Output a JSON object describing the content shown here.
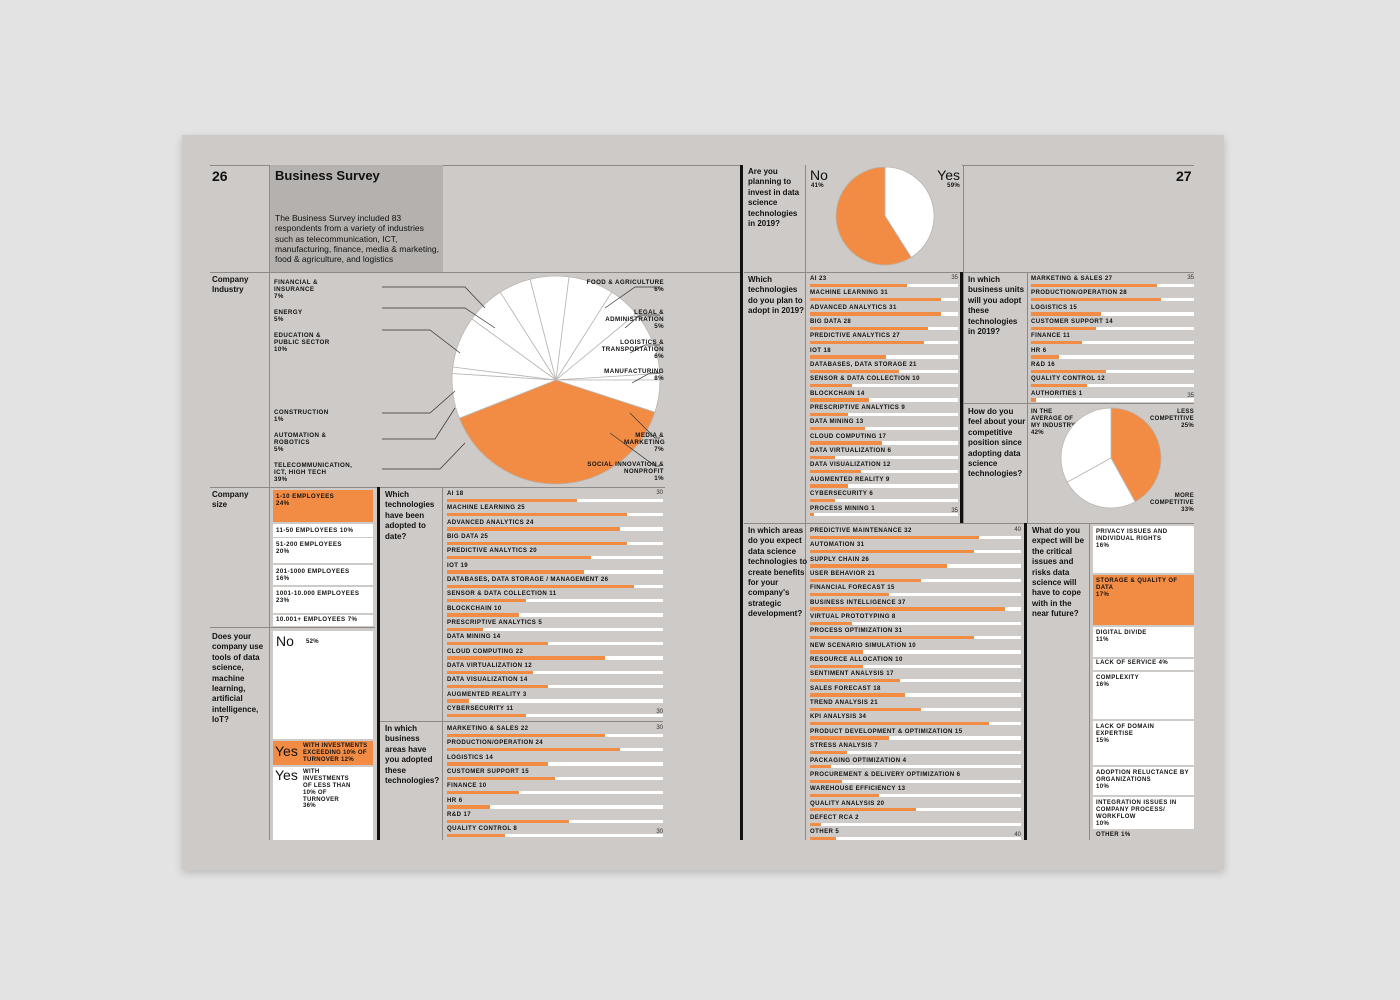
{
  "page_left": "26",
  "page_right": "27",
  "title": "Business Survey",
  "intro": "The Business Survey included 83 respondents from a variety of industries such as telecommunication, ICT, manufacturing, finance, media & marketing, food & agriculture, and logistics",
  "q_industry": "Company Industry",
  "q_size": "Company size",
  "q_tools": "Does your company use tools of data science, machine learning, artificial intelligence, IoT?",
  "q_adopted": "Which technologies have been adopted to date?",
  "q_areas": "In which business areas have you adopted these technologies?",
  "q_invest": "Are you planning to invest in data science technologies in 2019?",
  "q_plan": "Which technologies do you plan to adopt in 2019?",
  "q_units": "In which business units will you adopt these technologies in 2019?",
  "q_compete": "How do you feel about your competitive position since adopting data science technologies?",
  "q_benefits": "In which areas do you expect data science technologies to create benefits for your company's strategic development?",
  "q_issues": "What do you expect will be the critical issues and risks data science will have to cope with in the near future?",
  "industry_labels": {
    "food": "FOOD & AGRICULTURE",
    "food_v": "6%",
    "legal": "LEGAL & ADMINISTRATION",
    "legal_v": "5%",
    "logistics": "LOGISTICS & TRANSPORTATION",
    "logistics_v": "6%",
    "manufacturing": "MANUFACTURING",
    "manufacturing_v": "8%",
    "media": "MEDIA & MARKETING",
    "media_v": "7%",
    "social": "SOCIAL INNOVATION & NONPROFIT",
    "social_v": "1%",
    "financial": "FINANCIAL & INSURANCE",
    "financial_v": "7%",
    "energy": "ENERGY",
    "energy_v": "5%",
    "education": "EDUCATION & PUBLIC SECTOR",
    "education_v": "10%",
    "construction": "CONSTRUCTION",
    "construction_v": "1%",
    "automation": "AUTOMATION & ROBOTICS",
    "automation_v": "5%",
    "telecom": "TELECOMMUNICATION, ICT, HIGH TECH",
    "telecom_v": "39%"
  },
  "company_size": [
    {
      "label": "1-10 EMPLOYEES",
      "value": "24%"
    },
    {
      "label": "11-50 EMPLOYEES",
      "value": "10%"
    },
    {
      "label": "51-200 EMPLOYEES",
      "value": "20%"
    },
    {
      "label": "201-1000 EMPLOYEES",
      "value": "16%"
    },
    {
      "label": "1001-10.000 EMPLOYEES",
      "value": "23%"
    },
    {
      "label": "10.001+ EMPLOYEES",
      "value": "7%"
    }
  ],
  "tools": {
    "no": "No",
    "no_v": "52%",
    "yes1": "Yes",
    "yes1_text": "WITH INVESTMENTS EXCEEDING 10% OF TURNOVER",
    "yes1_v": "12%",
    "yes2": "Yes",
    "yes2_text": "WITH INVESTMENTS OF LESS THAN 10% OF TURNOVER",
    "yes2_v": "36%"
  },
  "invest": {
    "no": "No",
    "no_v": "41%",
    "yes": "Yes",
    "yes_v": "59%"
  },
  "compete": {
    "avg": "IN THE AVERAGE OF MY INDUSTRY",
    "avg_v": "42%",
    "less": "LESS COMPETITIVE",
    "less_v": "25%",
    "more": "MORE COMPETITIVE",
    "more_v": "33%"
  },
  "issues": [
    {
      "label": "PRIVACY ISSUES AND INDIVIDUAL RIGHTS",
      "value": "16%"
    },
    {
      "label": "STORAGE & QUALITY OF DATA",
      "value": "17%"
    },
    {
      "label": "DIGITAL DIVIDE",
      "value": "11%"
    },
    {
      "label": "LACK OF SERVICE",
      "value": "4%"
    },
    {
      "label": "COMPLEXITY",
      "value": "16%"
    },
    {
      "label": "LACK OF DOMAIN EXPERTISE",
      "value": "15%"
    },
    {
      "label": "ADOPTION RELUCTANCE BY ORGANIZATIONS",
      "value": "10%"
    },
    {
      "label": "INTEGRATION ISSUES IN COMPANY PROCESS/ WORKFLOW",
      "value": "10%"
    },
    {
      "label": "OTHER",
      "value": "1%"
    }
  ],
  "chart_data": [
    {
      "type": "pie",
      "id": "industry",
      "categories": [
        "Telecommunication, ICT, High Tech",
        "Media & Marketing",
        "Social Innovation & Nonprofit",
        "Manufacturing",
        "Logistics & Transportation",
        "Legal & Administration",
        "Food & Agriculture",
        "Financial & Insurance",
        "Energy",
        "Education & Public Sector",
        "Construction",
        "Automation & Robotics"
      ],
      "values": [
        39,
        7,
        1,
        8,
        6,
        5,
        6,
        7,
        5,
        10,
        1,
        5
      ]
    },
    {
      "type": "pie",
      "id": "invest",
      "categories": [
        "No",
        "Yes"
      ],
      "values": [
        41,
        59
      ]
    },
    {
      "type": "pie",
      "id": "compete",
      "categories": [
        "In the average of my industry",
        "Less competitive",
        "More competitive"
      ],
      "values": [
        42,
        25,
        33
      ]
    },
    {
      "type": "bar",
      "id": "adopted",
      "max": 30,
      "scale": [
        "30",
        "30"
      ],
      "items": [
        [
          "AI",
          18
        ],
        [
          "MACHINE LEARNING",
          25
        ],
        [
          "ADVANCED ANALYTICS",
          24
        ],
        [
          "BIG DATA",
          25
        ],
        [
          "PREDICTIVE ANALYTICS",
          20
        ],
        [
          "IOT",
          19
        ],
        [
          "DATABASES, DATA STORAGE / MANAGEMENT",
          26
        ],
        [
          "SENSOR & DATA COLLECTION",
          11
        ],
        [
          "BLOCKCHAIN",
          10
        ],
        [
          "PRESCRIPTIVE ANALYTICS",
          5
        ],
        [
          "DATA MINING",
          14
        ],
        [
          "CLOUD COMPUTING",
          22
        ],
        [
          "DATA VIRTUALIZATION",
          12
        ],
        [
          "DATA VISUALIZATION",
          14
        ],
        [
          "AUGMENTED REALITY",
          3
        ],
        [
          "CYBERSECURITY",
          11
        ]
      ]
    },
    {
      "type": "bar",
      "id": "areas",
      "max": 30,
      "scale": [
        "30",
        "30"
      ],
      "items": [
        [
          "MARKETING & SALES",
          22
        ],
        [
          "PRODUCTION/OPERATION",
          24
        ],
        [
          "LOGISTICS",
          14
        ],
        [
          "CUSTOMER SUPPORT",
          15
        ],
        [
          "FINANCE",
          10
        ],
        [
          "HR",
          6
        ],
        [
          "R&D",
          17
        ],
        [
          "QUALITY CONTROL",
          8
        ]
      ]
    },
    {
      "type": "bar",
      "id": "plan",
      "max": 35,
      "scale": [
        "35",
        "35"
      ],
      "items": [
        [
          "AI",
          23
        ],
        [
          "MACHINE LEARNING",
          31
        ],
        [
          "ADVANCED ANALYTICS",
          31
        ],
        [
          "BIG DATA",
          28
        ],
        [
          "PREDICTIVE ANALYTICS",
          27
        ],
        [
          "IOT",
          18
        ],
        [
          "DATABASES, DATA STORAGE",
          21
        ],
        [
          "SENSOR & DATA COLLECTION",
          10
        ],
        [
          "BLOCKCHAIN",
          14
        ],
        [
          "PRESCRIPTIVE ANALYTICS",
          9
        ],
        [
          "DATA MINING",
          13
        ],
        [
          "CLOUD COMPUTING",
          17
        ],
        [
          "DATA VIRTUALIZATION",
          6
        ],
        [
          "DATA VISUALIZATION",
          12
        ],
        [
          "AUGMENTED REALITY",
          9
        ],
        [
          "CYBERSECURITY",
          6
        ],
        [
          "PROCESS MINING",
          1
        ]
      ]
    },
    {
      "type": "bar",
      "id": "units",
      "max": 35,
      "scale": [
        "35",
        "35"
      ],
      "items": [
        [
          "MARKETING & SALES",
          27
        ],
        [
          "PRODUCTION/OPERATION",
          28
        ],
        [
          "LOGISTICS",
          15
        ],
        [
          "CUSTOMER SUPPORT",
          14
        ],
        [
          "FINANCE",
          11
        ],
        [
          "HR",
          6
        ],
        [
          "R&D",
          16
        ],
        [
          "QUALITY CONTROL",
          12
        ],
        [
          "AUTHORITIES",
          1
        ]
      ]
    },
    {
      "type": "bar",
      "id": "benefits",
      "max": 40,
      "scale": [
        "40",
        "40"
      ],
      "items": [
        [
          "PREDICTIVE MAINTENANCE",
          32
        ],
        [
          "AUTOMATION",
          31
        ],
        [
          "SUPPLY CHAIN",
          26
        ],
        [
          "USER BEHAVIOR",
          21
        ],
        [
          "FINANCIAL FORECAST",
          15
        ],
        [
          "BUSINESS INTELLIGENCE",
          37
        ],
        [
          "VIRTUAL PROTOTYPING",
          8
        ],
        [
          "PROCESS OPTIMIZATION",
          31
        ],
        [
          "NEW SCENARIO SIMULATION",
          10
        ],
        [
          "RESOURCE ALLOCATION",
          10
        ],
        [
          "SENTIMENT ANALYSIS",
          17
        ],
        [
          "SALES FORECAST",
          18
        ],
        [
          "TREND ANALYSIS",
          21
        ],
        [
          "KPI ANALYSIS",
          34
        ],
        [
          "PRODUCT DEVELOPMENT & OPTIMIZATION",
          15
        ],
        [
          "STRESS ANALYSIS",
          7
        ],
        [
          "PACKAGING OPTIMIZATION",
          4
        ],
        [
          "PROCUREMENT & DELIVERY OPTIMIZATION",
          6
        ],
        [
          "WAREHOUSE EFFICIENCY",
          13
        ],
        [
          "QUALITY ANALYSIS",
          20
        ],
        [
          "DEFECT RCA",
          2
        ],
        [
          "OTHER",
          5
        ]
      ]
    }
  ]
}
